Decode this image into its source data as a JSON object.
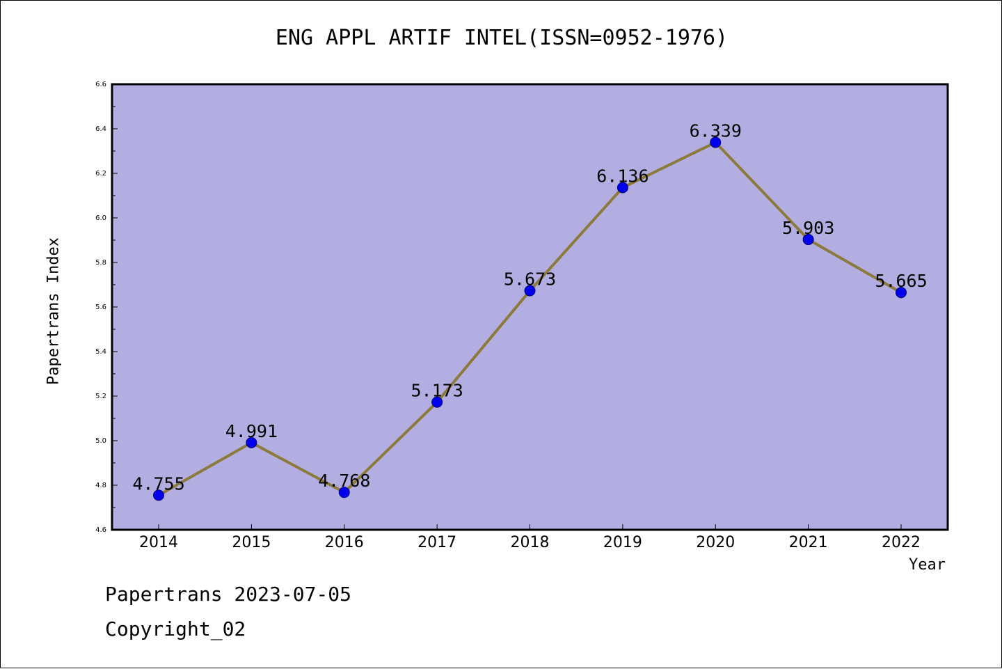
{
  "chart_data": {
    "type": "line",
    "title": "ENG APPL ARTIF INTEL(ISSN=0952-1976)",
    "xlabel": "Year",
    "ylabel": "Papertrans Index",
    "categories": [
      "2014",
      "2015",
      "2016",
      "2017",
      "2018",
      "2019",
      "2020",
      "2021",
      "2022"
    ],
    "series": [
      {
        "values": [
          4.755,
          4.991,
          4.768,
          5.173,
          5.673,
          6.136,
          6.339,
          5.903,
          5.665
        ],
        "labels": [
          "4.755",
          "4.991",
          "4.768",
          "5.173",
          "5.673",
          "6.136",
          "6.339",
          "5.903",
          "5.665"
        ]
      }
    ],
    "ylim": [
      4.6,
      6.6
    ],
    "yticks": [
      "4.6",
      "4.8",
      "5.0",
      "5.2",
      "5.4",
      "5.6",
      "5.8",
      "6.0",
      "6.2",
      "6.4",
      "6.6"
    ],
    "grid": false,
    "colors": {
      "plot_background": "#b3aee2",
      "line": "#8c7a3a",
      "marker": "#0000ee"
    }
  },
  "footer": {
    "line1": "Papertrans 2023-07-05",
    "line2": "Copyright_02"
  }
}
